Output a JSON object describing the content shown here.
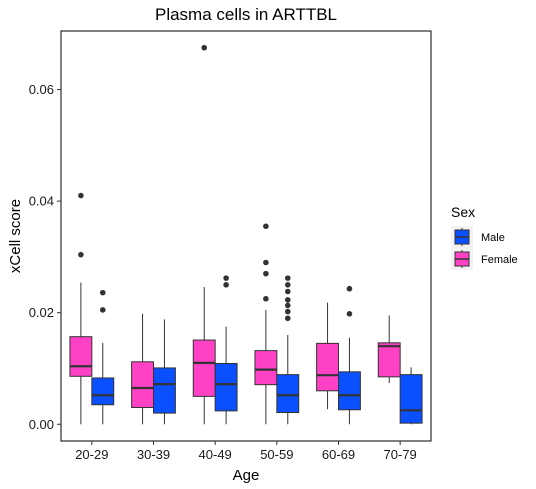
{
  "chart_data": {
    "type": "boxplot",
    "title": "Plasma cells in ARTTBL",
    "xlabel": "Age",
    "ylabel": "xCell score",
    "categories": [
      "20-29",
      "30-39",
      "40-49",
      "50-59",
      "60-69",
      "70-79"
    ],
    "ylim": [
      -0.003,
      0.0705
    ],
    "yticks": [
      0.0,
      0.02,
      0.04,
      0.06
    ],
    "ytick_labels": [
      "0.00",
      "0.02",
      "0.04",
      "0.06"
    ],
    "legend": {
      "title": "Sex",
      "position": "right",
      "entries": [
        {
          "name": "Male",
          "color": "#0a50ff"
        },
        {
          "name": "Female",
          "color": "#ff42c5"
        }
      ]
    },
    "series": [
      {
        "name": "Female",
        "color": "#ff42c5",
        "boxes": [
          {
            "min": 0.0,
            "q1": 0.0086,
            "median": 0.0104,
            "q3": 0.0157,
            "max": 0.0254,
            "outliers": [
              0.0304,
              0.041
            ]
          },
          {
            "min": 0.0,
            "q1": 0.003,
            "median": 0.0065,
            "q3": 0.0112,
            "max": 0.0198,
            "outliers": []
          },
          {
            "min": 0.0,
            "q1": 0.005,
            "median": 0.011,
            "q3": 0.0151,
            "max": 0.0246,
            "outliers": [
              0.0675
            ]
          },
          {
            "min": 0.0,
            "q1": 0.0071,
            "median": 0.0098,
            "q3": 0.0132,
            "max": 0.0205,
            "outliers": [
              0.0225,
              0.027,
              0.029,
              0.0355
            ]
          },
          {
            "min": 0.0027,
            "q1": 0.006,
            "median": 0.0088,
            "q3": 0.0145,
            "max": 0.0218,
            "outliers": []
          },
          {
            "min": 0.0074,
            "q1": 0.0085,
            "median": 0.014,
            "q3": 0.0146,
            "max": 0.0195,
            "outliers": []
          }
        ]
      },
      {
        "name": "Male",
        "color": "#0a50ff",
        "boxes": [
          {
            "min": 0.0,
            "q1": 0.0035,
            "median": 0.0052,
            "q3": 0.0083,
            "max": 0.0146,
            "outliers": [
              0.0205,
              0.0236
            ]
          },
          {
            "min": 0.0,
            "q1": 0.002,
            "median": 0.0072,
            "q3": 0.0101,
            "max": 0.0188,
            "outliers": []
          },
          {
            "min": 0.0,
            "q1": 0.0024,
            "median": 0.0072,
            "q3": 0.0109,
            "max": 0.0175,
            "outliers": [
              0.025,
              0.0262
            ]
          },
          {
            "min": 0.0,
            "q1": 0.0021,
            "median": 0.0052,
            "q3": 0.0089,
            "max": 0.016,
            "outliers": [
              0.019,
              0.0202,
              0.0213,
              0.0223,
              0.0238,
              0.025,
              0.0262
            ]
          },
          {
            "min": 0.0,
            "q1": 0.0026,
            "median": 0.0052,
            "q3": 0.0094,
            "max": 0.0155,
            "outliers": [
              0.0198,
              0.0243
            ]
          },
          {
            "min": 0.0,
            "q1": 0.0002,
            "median": 0.0025,
            "q3": 0.0089,
            "max": 0.0102,
            "outliers": []
          }
        ]
      }
    ]
  }
}
